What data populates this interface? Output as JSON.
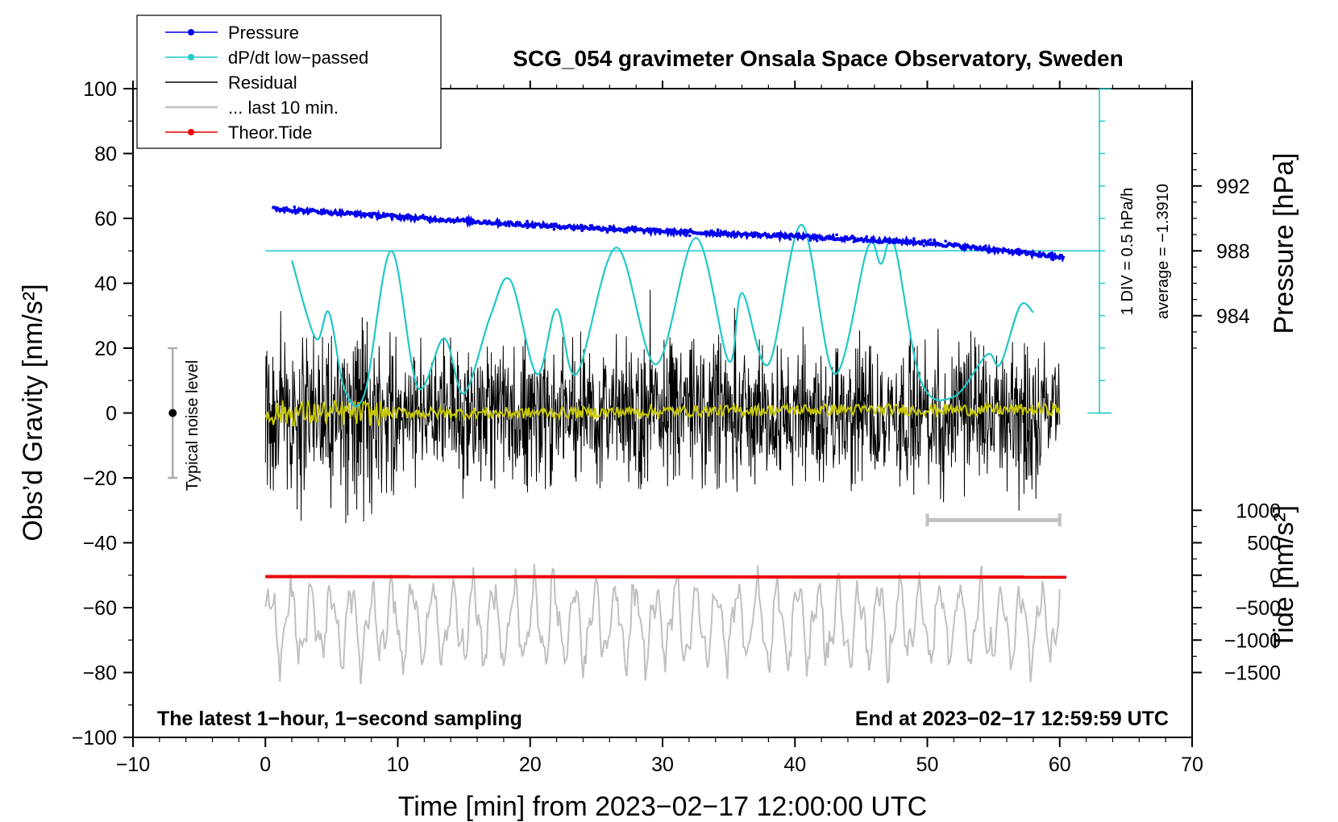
{
  "chart_data": {
    "type": "line",
    "title": "SCG_054 gravimeter Onsala Space Observatory, Sweden",
    "subtitle_left": "The latest 1−hour, 1−second sampling",
    "subtitle_right": "End at 2023−02−17 12:59:59 UTC",
    "xlabel": "Time [min] from 2023−02−17 12:00:00 UTC",
    "ylabel_left": "Obs’d Gravity [nm/s²]",
    "ylabel_right_top": "Pressure [hPa]",
    "ylabel_right_bottom": "Tide [nm/s²]",
    "xlim": [
      -10,
      70
    ],
    "ylim": [
      -100,
      100
    ],
    "x_ticks": [
      -10,
      0,
      10,
      20,
      30,
      40,
      50,
      60,
      70
    ],
    "x_tick_labels": [
      "−10",
      "0",
      "10",
      "20",
      "30",
      "40",
      "50",
      "60",
      "70"
    ],
    "y_ticks": [
      -100,
      -80,
      -60,
      -40,
      -20,
      0,
      20,
      40,
      60,
      80,
      100
    ],
    "y_tick_labels": [
      "−100",
      "−80",
      "−60",
      "−40",
      "−20",
      "0",
      "20",
      "40",
      "60",
      "80",
      "100"
    ],
    "pressure_axis": {
      "gravity_at_ref": 50,
      "ref_hpa": 988,
      "nm_per_hpa": 5,
      "ticks": [
        984,
        988,
        992
      ],
      "tick_labels": [
        "984",
        "988",
        "992"
      ]
    },
    "tide_axis": {
      "gravity_at_zero": -50,
      "nm_per_unit": 0.02,
      "ticks": [
        -1500,
        -1000,
        -500,
        0,
        500,
        1000
      ],
      "tick_labels": [
        "−1500",
        "−1000",
        "−500",
        "0",
        "500",
        "1000"
      ]
    },
    "dpdt_scale": {
      "label_1": "1 DIV = 0.5 hPa/h",
      "label_2": "average = −1.3910",
      "x": 63,
      "y_range": [
        0,
        100
      ],
      "divisions": 10
    },
    "noise_bar": {
      "label": "Typical noise level",
      "x": -7,
      "y_range": [
        -20,
        20
      ]
    },
    "ten_min_bar": {
      "x_range": [
        50,
        60
      ],
      "y": -33
    },
    "legend": {
      "position": "top-left",
      "entries": [
        {
          "label": "Pressure",
          "color": "#0000ee",
          "marker": true
        },
        {
          "label": "dP/dt low−passed",
          "color": "#1ec8c8",
          "marker": true
        },
        {
          "label": "Residual",
          "color": "#000000",
          "marker": false
        },
        {
          "label": "... last 10 min.",
          "color": "#c0c0c0",
          "marker": false
        },
        {
          "label": "Theor.Tide",
          "color": "#ee0000",
          "marker": true
        }
      ]
    },
    "series": [
      {
        "name": "Pressure",
        "unit": "hPa",
        "color": "#0000ee",
        "x": [
          0.5,
          10,
          20,
          30,
          40,
          50,
          60.3
        ],
        "values": [
          990.6,
          990.1,
          989.6,
          989.2,
          988.9,
          988.5,
          987.6
        ]
      },
      {
        "name": "dP/dt low−passed",
        "unit": "nm/s² (plot)",
        "color": "#1ec8c8",
        "x": [
          2,
          3.8,
          4.8,
          6,
          7.5,
          9.5,
          11.5,
          13.5,
          15,
          17,
          18.5,
          20.5,
          22,
          23.5,
          26.5,
          29.5,
          32.5,
          35,
          36,
          38,
          40.5,
          43,
          45.5,
          46.5,
          47.5,
          49.5,
          52,
          54.5,
          55.5,
          57,
          58
        ],
        "values": [
          47,
          23,
          31,
          7,
          6,
          50,
          8,
          23,
          6,
          30,
          41,
          12,
          32,
          12,
          51,
          15,
          54,
          16,
          37,
          15,
          58,
          12,
          51,
          46,
          52,
          10,
          5,
          18,
          15,
          33,
          31
        ]
      },
      {
        "name": "Residual",
        "unit": "nm/s²",
        "color": "#000000",
        "x_range": [
          0,
          60
        ],
        "amplitude_range": [
          12,
          35
        ]
      },
      {
        "name": "Residual (smoothed)",
        "unit": "nm/s²",
        "color": "#c8c800",
        "x": [
          0,
          10,
          20,
          30,
          40,
          50,
          60
        ],
        "values": [
          0,
          0,
          0,
          0.5,
          1,
          1,
          1
        ]
      },
      {
        "name": "... last 10 min.",
        "unit": "nm/s²",
        "color": "#c0c0c0",
        "x_range": [
          0,
          60
        ],
        "center": -65,
        "amplitude": 14
      },
      {
        "name": "Theor.Tide",
        "unit": "nm/s²",
        "color": "#ee0000",
        "x": [
          0,
          60.5
        ],
        "values": [
          -21,
          -30
        ]
      }
    ]
  }
}
